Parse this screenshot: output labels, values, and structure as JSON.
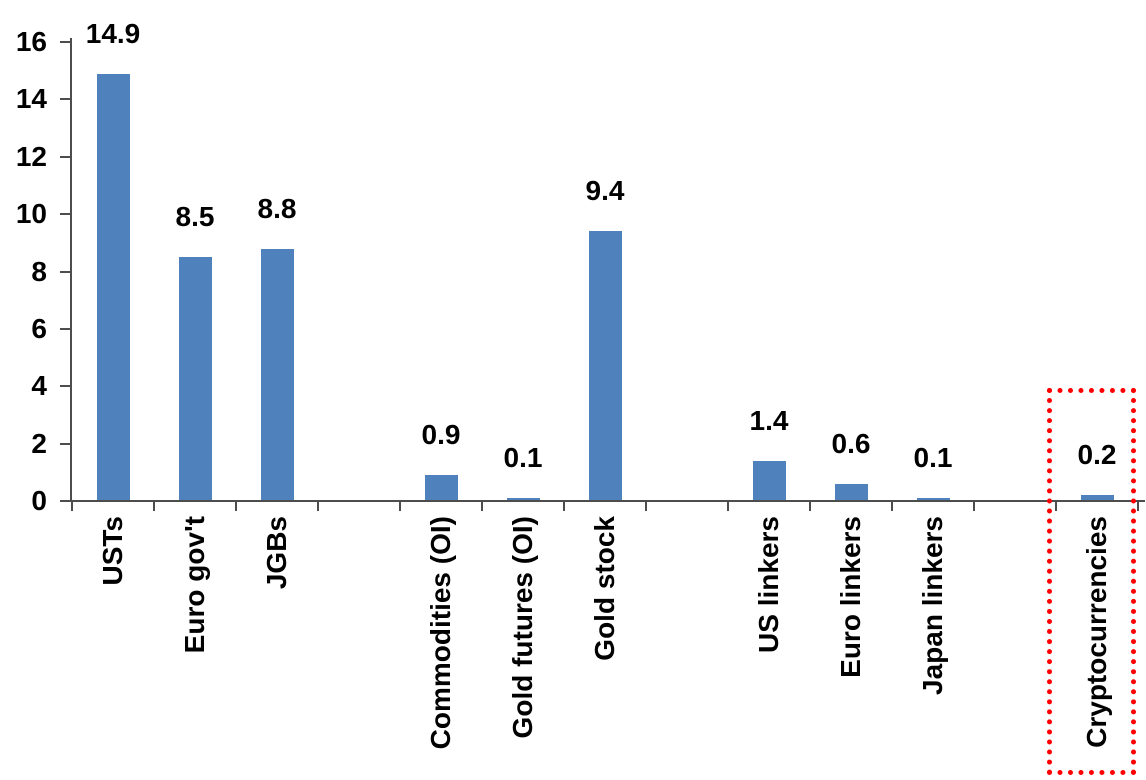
{
  "chart_data": {
    "type": "bar",
    "title": "",
    "xlabel": "",
    "ylabel": "",
    "categories": [
      "USTs",
      "Euro gov't",
      "JGBs",
      "Commodities (OI)",
      "Gold futures (OI)",
      "Gold stock",
      "US linkers",
      "Euro linkers",
      "Japan linkers",
      "Cryptocurrencies"
    ],
    "values": [
      14.9,
      8.5,
      8.8,
      0.9,
      0.1,
      9.4,
      1.4,
      0.6,
      0.1,
      0.2
    ],
    "data_labels": [
      "14.9",
      "8.5",
      "8.8",
      "0.9",
      "0.1",
      "9.4",
      "1.4",
      "0.6",
      "0.1",
      "0.2"
    ],
    "slots": [
      0,
      1,
      2,
      4,
      5,
      6,
      8,
      9,
      10,
      12
    ],
    "num_slots": 13,
    "yticks": [
      0,
      2,
      4,
      6,
      8,
      10,
      12,
      14,
      16
    ],
    "ylim": [
      0,
      16
    ],
    "grid": "off",
    "legend": "none",
    "x_label_rotation_deg": -90,
    "bar_color": "#4f81bd",
    "axis_color": "#4d4d4d",
    "text_color": "#000000",
    "highlight": {
      "target": "Cryptocurrencies",
      "style": "dotted-box",
      "color": "#ff0000"
    }
  }
}
